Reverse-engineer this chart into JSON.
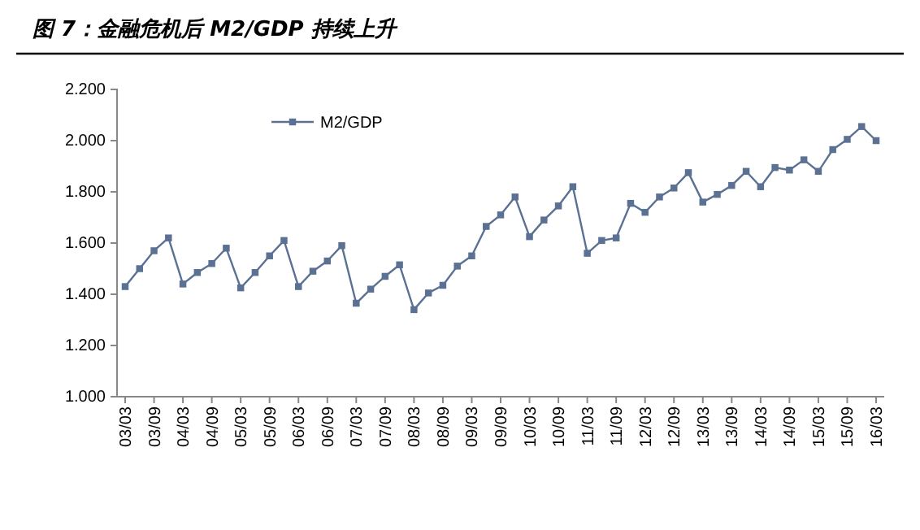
{
  "chart_data": {
    "type": "line",
    "title": "图 7：金融危机后 M2/GDP 持续上升",
    "categories": [
      "03/03",
      null,
      "03/09",
      null,
      "04/03",
      null,
      "04/09",
      null,
      "05/03",
      null,
      "05/09",
      null,
      "06/03",
      null,
      "06/09",
      null,
      "07/03",
      null,
      "07/09",
      null,
      "08/03",
      null,
      "08/09",
      null,
      "09/03",
      null,
      "09/09",
      null,
      "10/03",
      null,
      "10/09",
      null,
      "11/03",
      null,
      "11/09",
      null,
      "12/03",
      null,
      "12/09",
      null,
      "13/03",
      null,
      "13/09",
      null,
      "14/03",
      null,
      "14/09",
      null,
      "15/03",
      null,
      "15/09",
      null,
      "16/03"
    ],
    "series": [
      {
        "name": "M2/GDP",
        "color": "#5b7193",
        "values": [
          1.43,
          1.5,
          1.57,
          1.62,
          1.44,
          1.485,
          1.52,
          1.58,
          1.425,
          1.485,
          1.55,
          1.61,
          1.43,
          1.49,
          1.53,
          1.59,
          1.365,
          1.42,
          1.47,
          1.515,
          1.34,
          1.405,
          1.435,
          1.51,
          1.55,
          1.665,
          1.71,
          1.78,
          1.625,
          1.69,
          1.745,
          1.82,
          1.56,
          1.61,
          1.62,
          1.755,
          1.72,
          1.78,
          1.815,
          1.875,
          1.76,
          1.79,
          1.825,
          1.88,
          1.82,
          1.895,
          1.885,
          1.925,
          1.88,
          1.965,
          2.005,
          2.055,
          2.0
        ]
      }
    ],
    "ylim": [
      1,
      2.2
    ],
    "yticks": [
      {
        "value": 1,
        "label": "1.000"
      },
      {
        "value": 1.2,
        "label": "1.200"
      },
      {
        "value": 1.4,
        "label": "1.400"
      },
      {
        "value": 1.6,
        "label": "1.600"
      },
      {
        "value": 1.8,
        "label": "1.800"
      },
      {
        "value": 2,
        "label": "2.000"
      },
      {
        "value": 2.2,
        "label": "2.200"
      }
    ],
    "legend": "top left",
    "marker": "square",
    "line_style": "solid"
  }
}
